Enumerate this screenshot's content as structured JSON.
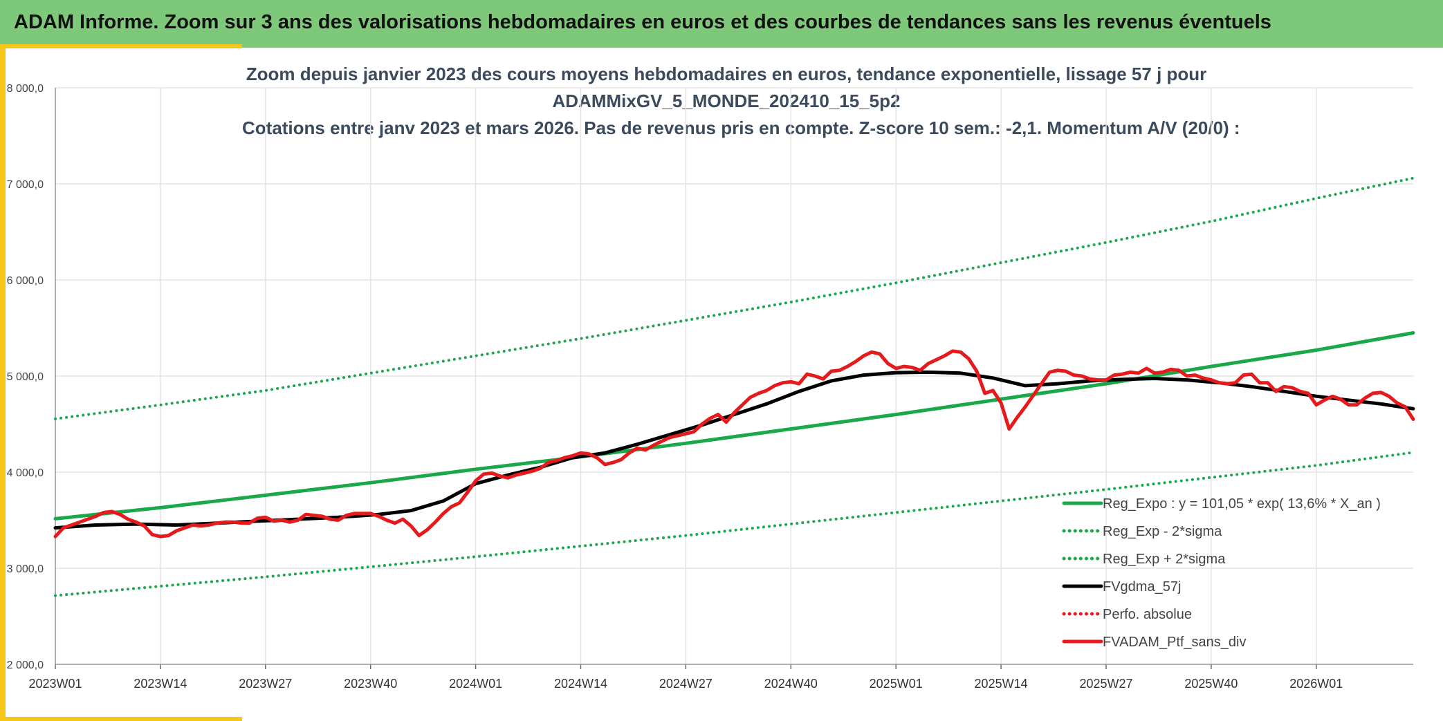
{
  "header": {
    "title": "ADAM Informe. Zoom sur 3 ans des valorisations hebdomadaires en euros et des courbes de tendances sans les revenus éventuels"
  },
  "colors": {
    "header_bg": "#7ec87a",
    "accent": "#f5c518",
    "green": "#1ba84b",
    "black": "#000000",
    "red": "#e41a1c",
    "grid": "#e3e3e3"
  },
  "chart_data": {
    "type": "line",
    "title": [
      "Zoom depuis janvier 2023 des cours moyens hebdomadaires en euros, tendance exponentielle, lissage 57 j pour",
      "ADAMMixGV_5_MONDE_202410_15_5p2",
      "Cotations entre janv 2023 et mars 2026. Pas de revenus pris en compte. Z-score 10 sem.: -2,1. Momentum A/V (20/0) :"
    ],
    "xlabel": "",
    "ylabel": "",
    "ylim": [
      2000,
      8000
    ],
    "xlim": [
      0,
      168
    ],
    "grid": true,
    "legend_position": "bottom-right",
    "yticks": [
      2000,
      3000,
      4000,
      5000,
      6000,
      7000,
      8000
    ],
    "ytick_labels": [
      "2 000,0",
      "3 000,0",
      "4 000,0",
      "5 000,0",
      "6 000,0",
      "7 000,0",
      "8 000,0"
    ],
    "xticks": [
      0,
      13,
      26,
      39,
      52,
      65,
      78,
      91,
      104,
      117,
      130,
      143,
      156
    ],
    "xtick_labels": [
      "2023W01",
      "2023W14",
      "2023W27",
      "2023W40",
      "2024W01",
      "2024W14",
      "2024W27",
      "2024W40",
      "2025W01",
      "2025W14",
      "2025W27",
      "2025W40",
      "2026W01"
    ],
    "legend": [
      {
        "label": "Reg_Expo : y = 101,05 * exp( 13,6% *  X_an )",
        "style": "solid",
        "color": "#1ba84b"
      },
      {
        "label": "Reg_Exp - 2*sigma",
        "style": "dotted",
        "color": "#1ba84b"
      },
      {
        "label": "Reg_Exp + 2*sigma",
        "style": "dotted",
        "color": "#1ba84b"
      },
      {
        "label": "FVgdma_57j",
        "style": "solid",
        "color": "#000000"
      },
      {
        "label": "Perfo. absolue",
        "style": "dotted",
        "color": "#e41a1c"
      },
      {
        "label": "FVADAM_Ptf_sans_div",
        "style": "solid",
        "color": "#e41a1c"
      }
    ],
    "series": [
      {
        "name": "Reg_Expo",
        "style": "solid",
        "color": "#1ba84b",
        "width": 5,
        "points": [
          [
            0,
            3515
          ],
          [
            13,
            3630
          ],
          [
            26,
            3760
          ],
          [
            39,
            3890
          ],
          [
            52,
            4030
          ],
          [
            65,
            4160
          ],
          [
            78,
            4300
          ],
          [
            91,
            4450
          ],
          [
            104,
            4600
          ],
          [
            117,
            4760
          ],
          [
            130,
            4920
          ],
          [
            143,
            5100
          ],
          [
            156,
            5270
          ],
          [
            168,
            5450
          ]
        ]
      },
      {
        "name": "Reg_Exp - 2*sigma",
        "style": "dotted",
        "color": "#1ba84b",
        "width": 4,
        "points": [
          [
            0,
            2715
          ],
          [
            26,
            2910
          ],
          [
            52,
            3120
          ],
          [
            78,
            3340
          ],
          [
            104,
            3580
          ],
          [
            130,
            3820
          ],
          [
            156,
            4070
          ],
          [
            168,
            4205
          ]
        ]
      },
      {
        "name": "Reg_Exp + 2*sigma",
        "style": "dotted",
        "color": "#1ba84b",
        "width": 4,
        "points": [
          [
            0,
            4555
          ],
          [
            13,
            4700
          ],
          [
            26,
            4850
          ],
          [
            39,
            5030
          ],
          [
            52,
            5210
          ],
          [
            65,
            5390
          ],
          [
            78,
            5580
          ],
          [
            91,
            5770
          ],
          [
            104,
            5970
          ],
          [
            117,
            6180
          ],
          [
            130,
            6390
          ],
          [
            143,
            6610
          ],
          [
            156,
            6850
          ],
          [
            168,
            7060
          ]
        ]
      },
      {
        "name": "FVgdma_57j",
        "style": "solid",
        "color": "#000000",
        "width": 5,
        "points": [
          [
            0,
            3420
          ],
          [
            5,
            3450
          ],
          [
            10,
            3460
          ],
          [
            15,
            3450
          ],
          [
            20,
            3470
          ],
          [
            25,
            3490
          ],
          [
            30,
            3510
          ],
          [
            35,
            3530
          ],
          [
            40,
            3560
          ],
          [
            44,
            3600
          ],
          [
            48,
            3700
          ],
          [
            52,
            3880
          ],
          [
            56,
            3970
          ],
          [
            60,
            4050
          ],
          [
            64,
            4150
          ],
          [
            68,
            4200
          ],
          [
            72,
            4290
          ],
          [
            76,
            4390
          ],
          [
            80,
            4490
          ],
          [
            84,
            4600
          ],
          [
            88,
            4710
          ],
          [
            92,
            4840
          ],
          [
            96,
            4950
          ],
          [
            100,
            5010
          ],
          [
            104,
            5035
          ],
          [
            108,
            5040
          ],
          [
            112,
            5030
          ],
          [
            116,
            4980
          ],
          [
            120,
            4900
          ],
          [
            124,
            4920
          ],
          [
            128,
            4950
          ],
          [
            132,
            4965
          ],
          [
            136,
            4975
          ],
          [
            140,
            4960
          ],
          [
            144,
            4930
          ],
          [
            148,
            4890
          ],
          [
            152,
            4840
          ],
          [
            156,
            4790
          ],
          [
            160,
            4750
          ],
          [
            164,
            4710
          ],
          [
            168,
            4660
          ]
        ]
      },
      {
        "name": "FVADAM_Ptf_sans_div",
        "style": "solid",
        "color": "#e41a1c",
        "width": 5,
        "points": [
          [
            0,
            3330
          ],
          [
            1,
            3420
          ],
          [
            3,
            3480
          ],
          [
            5,
            3540
          ],
          [
            6,
            3580
          ],
          [
            7,
            3590
          ],
          [
            8,
            3560
          ],
          [
            9,
            3510
          ],
          [
            10,
            3480
          ],
          [
            11,
            3440
          ],
          [
            12,
            3350
          ],
          [
            13,
            3330
          ],
          [
            14,
            3340
          ],
          [
            15,
            3390
          ],
          [
            16,
            3420
          ],
          [
            17,
            3450
          ],
          [
            18,
            3440
          ],
          [
            19,
            3450
          ],
          [
            20,
            3470
          ],
          [
            21,
            3480
          ],
          [
            22,
            3480
          ],
          [
            23,
            3470
          ],
          [
            24,
            3470
          ],
          [
            25,
            3520
          ],
          [
            26,
            3530
          ],
          [
            27,
            3490
          ],
          [
            28,
            3500
          ],
          [
            29,
            3480
          ],
          [
            30,
            3500
          ],
          [
            31,
            3560
          ],
          [
            32,
            3550
          ],
          [
            33,
            3540
          ],
          [
            34,
            3510
          ],
          [
            35,
            3500
          ],
          [
            36,
            3550
          ],
          [
            37,
            3570
          ],
          [
            38,
            3570
          ],
          [
            39,
            3570
          ],
          [
            40,
            3540
          ],
          [
            41,
            3500
          ],
          [
            42,
            3470
          ],
          [
            43,
            3510
          ],
          [
            44,
            3440
          ],
          [
            45,
            3340
          ],
          [
            46,
            3400
          ],
          [
            47,
            3480
          ],
          [
            48,
            3570
          ],
          [
            49,
            3640
          ],
          [
            50,
            3680
          ],
          [
            51,
            3790
          ],
          [
            52,
            3910
          ],
          [
            53,
            3980
          ],
          [
            54,
            3990
          ],
          [
            55,
            3960
          ],
          [
            56,
            3940
          ],
          [
            57,
            3970
          ],
          [
            58,
            3990
          ],
          [
            59,
            4010
          ],
          [
            60,
            4040
          ],
          [
            61,
            4100
          ],
          [
            62,
            4120
          ],
          [
            63,
            4150
          ],
          [
            64,
            4170
          ],
          [
            65,
            4200
          ],
          [
            66,
            4190
          ],
          [
            67,
            4150
          ],
          [
            68,
            4080
          ],
          [
            69,
            4100
          ],
          [
            70,
            4130
          ],
          [
            71,
            4200
          ],
          [
            72,
            4250
          ],
          [
            73,
            4230
          ],
          [
            74,
            4280
          ],
          [
            75,
            4320
          ],
          [
            76,
            4360
          ],
          [
            77,
            4380
          ],
          [
            78,
            4400
          ],
          [
            79,
            4420
          ],
          [
            80,
            4500
          ],
          [
            81,
            4560
          ],
          [
            82,
            4600
          ],
          [
            83,
            4520
          ],
          [
            84,
            4620
          ],
          [
            85,
            4700
          ],
          [
            86,
            4780
          ],
          [
            87,
            4820
          ],
          [
            88,
            4850
          ],
          [
            89,
            4900
          ],
          [
            90,
            4930
          ],
          [
            91,
            4940
          ],
          [
            92,
            4920
          ],
          [
            93,
            5020
          ],
          [
            94,
            5000
          ],
          [
            95,
            4970
          ],
          [
            96,
            5050
          ],
          [
            97,
            5060
          ],
          [
            98,
            5100
          ],
          [
            99,
            5150
          ],
          [
            100,
            5210
          ],
          [
            101,
            5250
          ],
          [
            102,
            5230
          ],
          [
            103,
            5130
          ],
          [
            104,
            5080
          ],
          [
            105,
            5100
          ],
          [
            106,
            5090
          ],
          [
            107,
            5060
          ],
          [
            108,
            5130
          ],
          [
            109,
            5170
          ],
          [
            110,
            5210
          ],
          [
            111,
            5260
          ],
          [
            112,
            5250
          ],
          [
            113,
            5180
          ],
          [
            114,
            5050
          ],
          [
            115,
            4820
          ],
          [
            116,
            4850
          ],
          [
            117,
            4720
          ],
          [
            118,
            4450
          ],
          [
            119,
            4570
          ],
          [
            120,
            4680
          ],
          [
            121,
            4800
          ],
          [
            122,
            4920
          ],
          [
            123,
            5040
          ],
          [
            124,
            5060
          ],
          [
            125,
            5050
          ],
          [
            126,
            5010
          ],
          [
            127,
            5000
          ],
          [
            128,
            4970
          ],
          [
            129,
            4960
          ],
          [
            130,
            4960
          ],
          [
            131,
            5010
          ],
          [
            132,
            5020
          ],
          [
            133,
            5040
          ],
          [
            134,
            5030
          ],
          [
            135,
            5080
          ],
          [
            136,
            5030
          ],
          [
            137,
            5040
          ],
          [
            138,
            5070
          ],
          [
            139,
            5060
          ],
          [
            140,
            5000
          ],
          [
            141,
            5010
          ],
          [
            142,
            4980
          ],
          [
            143,
            4960
          ],
          [
            144,
            4930
          ],
          [
            145,
            4920
          ],
          [
            146,
            4930
          ],
          [
            147,
            5010
          ],
          [
            148,
            5020
          ],
          [
            149,
            4930
          ],
          [
            150,
            4930
          ],
          [
            151,
            4840
          ],
          [
            152,
            4890
          ],
          [
            153,
            4880
          ],
          [
            154,
            4840
          ],
          [
            155,
            4820
          ],
          [
            156,
            4700
          ],
          [
            157,
            4750
          ],
          [
            158,
            4790
          ],
          [
            159,
            4760
          ],
          [
            160,
            4700
          ],
          [
            161,
            4700
          ],
          [
            162,
            4770
          ],
          [
            163,
            4820
          ],
          [
            164,
            4830
          ],
          [
            165,
            4790
          ],
          [
            166,
            4720
          ],
          [
            167,
            4680
          ],
          [
            168,
            4550
          ]
        ]
      }
    ]
  }
}
